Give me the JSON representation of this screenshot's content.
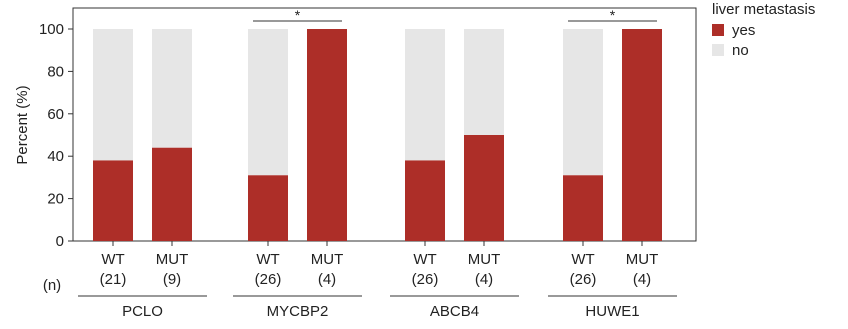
{
  "chart_data": {
    "type": "bar",
    "stacked": true,
    "ylabel": "Percent (%)",
    "ylim": [
      0,
      100
    ],
    "yticks": [
      0,
      20,
      40,
      60,
      80,
      100
    ],
    "n_label": "(n)",
    "legend": {
      "title": "liver metastasis",
      "placement": "top-right",
      "entries": [
        {
          "label": "yes",
          "color": "#ad2e28"
        },
        {
          "label": "no",
          "color": "#e6e6e6"
        }
      ]
    },
    "groups": [
      {
        "name": "PCLO",
        "bars": [
          {
            "label": "WT",
            "n": "(21)",
            "yes": 38,
            "significant": false
          },
          {
            "label": "MUT",
            "n": "(9)",
            "yes": 44,
            "significant": false
          }
        ],
        "significance": ""
      },
      {
        "name": "MYCBP2",
        "bars": [
          {
            "label": "WT",
            "n": "(26)",
            "yes": 31
          },
          {
            "label": "MUT",
            "n": "(4)",
            "yes": 100
          }
        ],
        "significance": "*"
      },
      {
        "name": "ABCB4",
        "bars": [
          {
            "label": "WT",
            "n": "(26)",
            "yes": 38
          },
          {
            "label": "MUT",
            "n": "(4)",
            "yes": 50
          }
        ],
        "significance": ""
      },
      {
        "name": "HUWE1",
        "bars": [
          {
            "label": "WT",
            "n": "(26)",
            "yes": 31
          },
          {
            "label": "MUT",
            "n": "(4)",
            "yes": 100
          }
        ],
        "significance": "*"
      }
    ]
  }
}
